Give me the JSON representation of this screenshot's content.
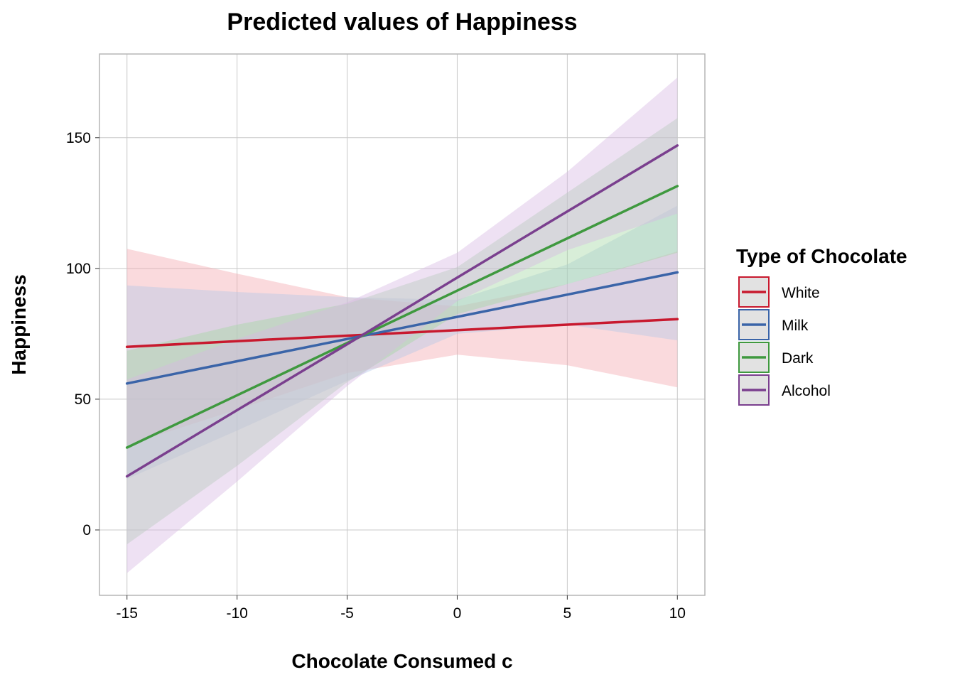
{
  "chart_data": {
    "type": "line",
    "title": "Predicted values of Happiness",
    "xlabel": "Chocolate Consumed c",
    "ylabel": "Happiness",
    "xlim": [
      -16.25,
      11.25
    ],
    "ylim": [
      -25,
      182
    ],
    "x_ticks": [
      -15,
      -10,
      -5,
      0,
      5,
      10
    ],
    "y_ticks": [
      0,
      50,
      100,
      150
    ],
    "x_tick_labels": [
      "-15",
      "-10",
      "-5",
      "0",
      "5",
      "10"
    ],
    "y_tick_labels": [
      "0",
      "50",
      "100",
      "150"
    ],
    "grid": true,
    "legend": {
      "title": "Type of Chocolate",
      "position": "right"
    },
    "series": [
      {
        "name": "White",
        "color": "#c8192e",
        "fill": "#f4a6ad",
        "x": [
          -15,
          -10,
          -5,
          0,
          5,
          10
        ],
        "y": [
          70.0,
          72.2,
          74.3,
          76.4,
          78.5,
          80.6
        ],
        "ci_lower": [
          32.5,
          46.0,
          60.0,
          67.0,
          63.0,
          54.5
        ],
        "ci_upper": [
          107.5,
          98.0,
          89.0,
          85.5,
          94.0,
          106.5
        ]
      },
      {
        "name": "Milk",
        "color": "#3a64a8",
        "fill": "#b3c8e6",
        "x": [
          -15,
          -10,
          -5,
          0,
          5,
          10
        ],
        "y": [
          56.0,
          64.5,
          73.0,
          81.5,
          90.0,
          98.5
        ],
        "ci_lower": [
          19.5,
          38.0,
          57.0,
          75.0,
          78.5,
          72.5
        ],
        "ci_upper": [
          93.5,
          91.0,
          89.0,
          88.0,
          101.5,
          124.0
        ]
      },
      {
        "name": "Dark",
        "color": "#3f993f",
        "fill": "#a3d6a3",
        "x": [
          -15,
          -10,
          -5,
          0,
          5,
          10
        ],
        "y": [
          31.5,
          51.5,
          71.5,
          91.5,
          111.5,
          131.5
        ],
        "ci_lower": [
          -5.5,
          24.5,
          56.5,
          82.5,
          94.0,
          106.0
        ],
        "ci_upper": [
          68.5,
          78.5,
          86.5,
          100.5,
          129.0,
          157.5
        ]
      },
      {
        "name": "Alcohol",
        "color": "#7a3f8e",
        "fill": "#d6b8e3",
        "x": [
          -15,
          -10,
          -5,
          0,
          5,
          10
        ],
        "y": [
          20.5,
          45.8,
          71.0,
          96.5,
          121.8,
          147.0
        ],
        "ci_lower": [
          -16.5,
          18.5,
          55.0,
          87.5,
          107.0,
          121.0
        ],
        "ci_upper": [
          57.5,
          73.0,
          87.0,
          106.0,
          137.0,
          173.0
        ]
      }
    ]
  }
}
